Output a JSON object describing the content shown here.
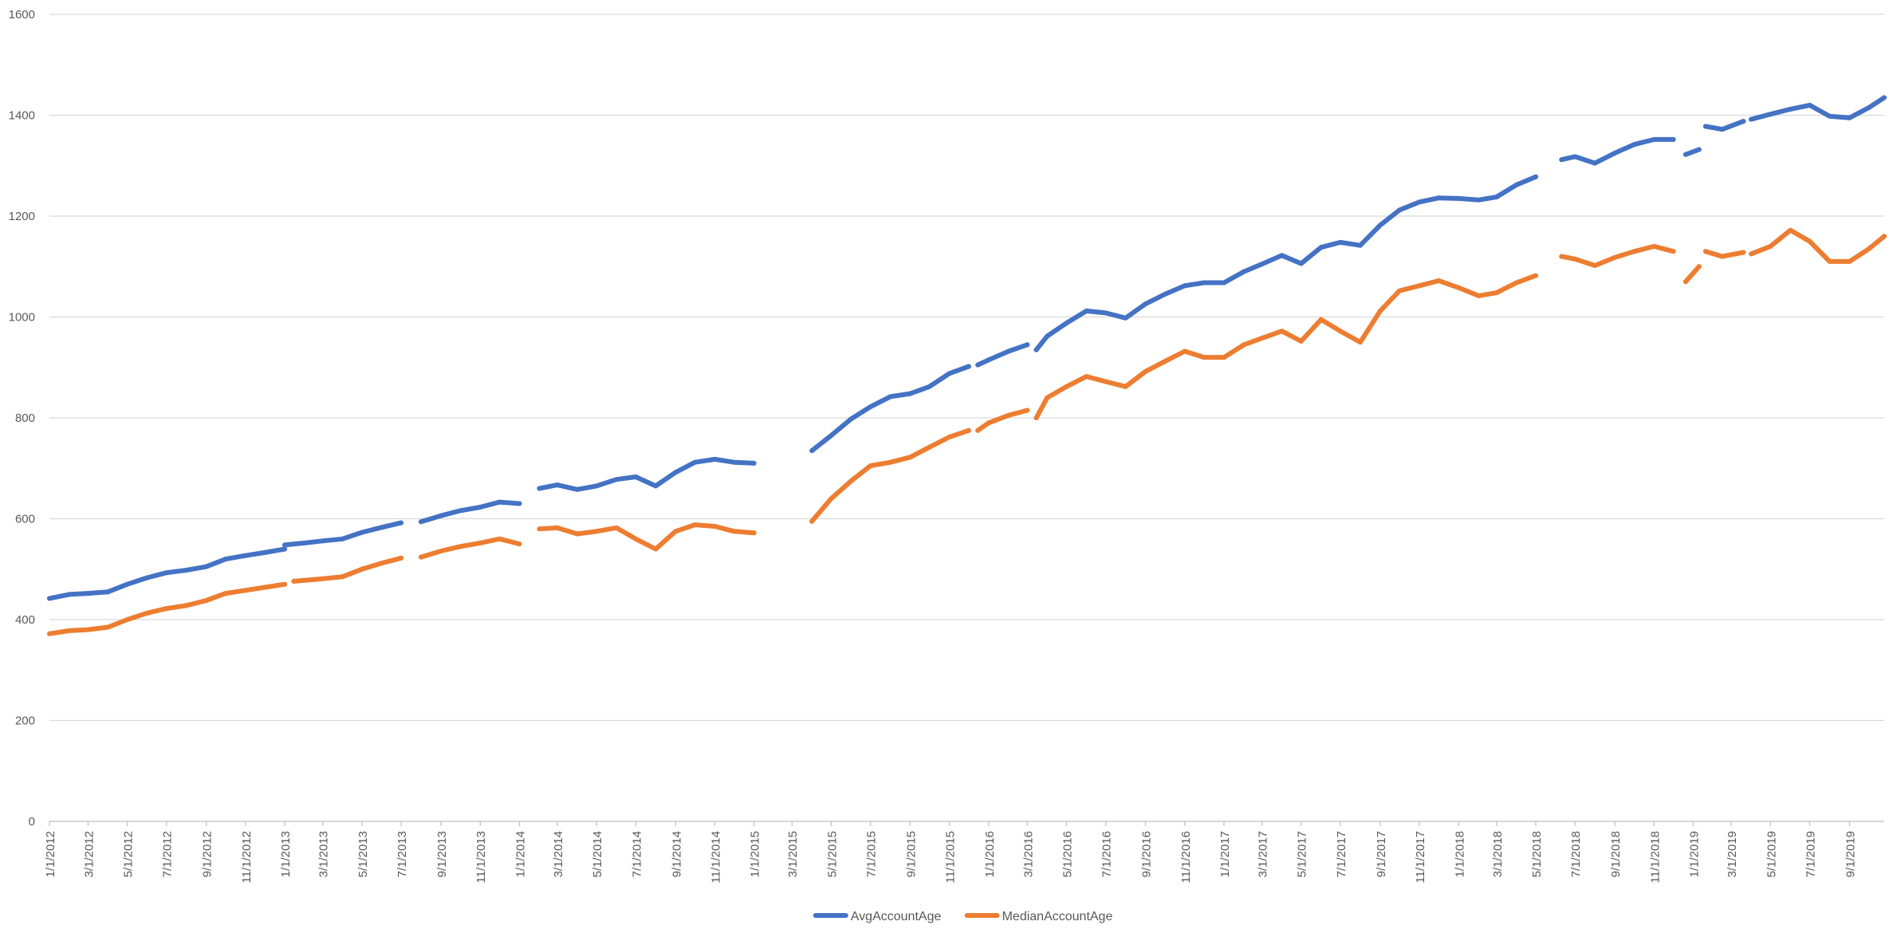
{
  "chart_data": {
    "type": "line",
    "title": "",
    "xlabel": "",
    "ylabel": "",
    "ylim": [
      0,
      1600
    ],
    "y_ticks": [
      0,
      200,
      400,
      600,
      800,
      1000,
      1200,
      1400,
      1600
    ],
    "x_range": [
      "2012-01-01",
      "2019-10-25"
    ],
    "x_tick_labels": [
      "1/1/2012",
      "3/1/2012",
      "5/1/2012",
      "7/1/2012",
      "9/1/2012",
      "11/1/2012",
      "1/1/2013",
      "3/1/2013",
      "5/1/2013",
      "7/1/2013",
      "9/1/2013",
      "11/1/2013",
      "1/1/2014",
      "3/1/2014",
      "5/1/2014",
      "7/1/2014",
      "9/1/2014",
      "11/1/2014",
      "1/1/2015",
      "3/1/2015",
      "5/1/2015",
      "7/1/2015",
      "9/1/2015",
      "11/1/2015",
      "1/1/2016",
      "3/1/2016",
      "5/1/2016",
      "7/1/2016",
      "9/1/2016",
      "11/1/2016",
      "1/1/2017",
      "3/1/2017",
      "5/1/2017",
      "7/1/2017",
      "9/1/2017",
      "11/1/2017",
      "1/1/2018",
      "3/1/2018",
      "5/1/2018",
      "7/1/2018",
      "9/1/2018",
      "11/1/2018",
      "1/1/2019",
      "3/1/2019",
      "5/1/2019",
      "7/1/2019",
      "9/1/2019"
    ],
    "grid": true,
    "legend_position": "bottom",
    "series": [
      {
        "name": "AvgAccountAge",
        "color": "#4472C4",
        "segments": [
          [
            [
              "2012-01-01",
              442
            ],
            [
              "2012-02-01",
              450
            ],
            [
              "2012-03-01",
              452
            ],
            [
              "2012-04-01",
              455
            ],
            [
              "2012-05-01",
              470
            ],
            [
              "2012-06-01",
              483
            ],
            [
              "2012-07-01",
              493
            ],
            [
              "2012-08-01",
              498
            ],
            [
              "2012-09-01",
              505
            ],
            [
              "2012-10-01",
              520
            ],
            [
              "2012-11-01",
              527
            ],
            [
              "2012-12-01",
              533
            ],
            [
              "2013-01-01",
              540
            ]
          ],
          [
            [
              "2013-01-01",
              548
            ],
            [
              "2013-02-01",
              552
            ],
            [
              "2013-03-01",
              556
            ],
            [
              "2013-04-01",
              560
            ],
            [
              "2013-05-01",
              573
            ],
            [
              "2013-06-01",
              583
            ],
            [
              "2013-07-01",
              592
            ]
          ],
          [
            [
              "2013-08-01",
              594
            ],
            [
              "2013-09-01",
              606
            ],
            [
              "2013-10-01",
              616
            ],
            [
              "2013-11-01",
              623
            ],
            [
              "2013-12-01",
              633
            ],
            [
              "2014-01-01",
              630
            ]
          ],
          [
            [
              "2014-02-01",
              660
            ],
            [
              "2014-03-01",
              667
            ],
            [
              "2014-04-01",
              658
            ],
            [
              "2014-05-01",
              665
            ],
            [
              "2014-06-01",
              678
            ],
            [
              "2014-07-01",
              683
            ],
            [
              "2014-08-01",
              665
            ],
            [
              "2014-09-01",
              692
            ],
            [
              "2014-10-01",
              712
            ],
            [
              "2014-11-01",
              718
            ],
            [
              "2014-12-01",
              712
            ],
            [
              "2015-01-01",
              710
            ]
          ],
          [
            [
              "2015-04-01",
              735
            ],
            [
              "2015-05-01",
              765
            ],
            [
              "2015-06-01",
              798
            ],
            [
              "2015-07-01",
              822
            ],
            [
              "2015-08-01",
              842
            ],
            [
              "2015-09-01",
              848
            ],
            [
              "2015-10-01",
              862
            ],
            [
              "2015-11-01",
              888
            ],
            [
              "2015-12-01",
              902
            ]
          ],
          [
            [
              "2015-12-15",
              905
            ],
            [
              "2016-01-01",
              915
            ],
            [
              "2016-02-01",
              932
            ],
            [
              "2016-03-01",
              945
            ]
          ],
          [
            [
              "2016-03-15",
              935
            ],
            [
              "2016-04-01",
              962
            ],
            [
              "2016-05-01",
              988
            ],
            [
              "2016-06-01",
              1012
            ],
            [
              "2016-07-01",
              1008
            ],
            [
              "2016-08-01",
              998
            ],
            [
              "2016-09-01",
              1026
            ],
            [
              "2016-10-01",
              1045
            ],
            [
              "2016-11-01",
              1062
            ],
            [
              "2016-12-01",
              1068
            ],
            [
              "2017-01-01",
              1068
            ],
            [
              "2017-02-01",
              1090
            ],
            [
              "2017-03-01",
              1105
            ],
            [
              "2017-04-01",
              1122
            ],
            [
              "2017-05-01",
              1106
            ],
            [
              "2017-06-01",
              1138
            ],
            [
              "2017-07-01",
              1148
            ],
            [
              "2017-08-01",
              1142
            ],
            [
              "2017-09-01",
              1182
            ],
            [
              "2017-10-01",
              1212
            ],
            [
              "2017-11-01",
              1228
            ],
            [
              "2017-12-01",
              1236
            ],
            [
              "2018-01-01",
              1235
            ],
            [
              "2018-02-01",
              1232
            ],
            [
              "2018-03-01",
              1238
            ],
            [
              "2018-04-01",
              1262
            ],
            [
              "2018-05-01",
              1278
            ]
          ],
          [
            [
              "2018-06-10",
              1312
            ],
            [
              "2018-07-01",
              1318
            ],
            [
              "2018-08-01",
              1305
            ],
            [
              "2018-09-01",
              1325
            ],
            [
              "2018-10-01",
              1342
            ],
            [
              "2018-11-01",
              1352
            ],
            [
              "2018-12-01",
              1352
            ]
          ],
          [
            [
              "2018-12-20",
              1322
            ],
            [
              "2019-01-10",
              1332
            ]
          ],
          [
            [
              "2019-01-20",
              1378
            ],
            [
              "2019-02-15",
              1372
            ],
            [
              "2019-03-20",
              1388
            ]
          ],
          [
            [
              "2019-04-01",
              1392
            ],
            [
              "2019-05-01",
              1402
            ],
            [
              "2019-06-01",
              1412
            ],
            [
              "2019-07-01",
              1420
            ],
            [
              "2019-08-01",
              1398
            ],
            [
              "2019-09-01",
              1395
            ],
            [
              "2019-10-01",
              1415
            ],
            [
              "2019-10-25",
              1435
            ]
          ]
        ]
      },
      {
        "name": "MedianAccountAge",
        "color": "#ED7D31",
        "segments": [
          [
            [
              "2012-01-01",
              372
            ],
            [
              "2012-02-01",
              378
            ],
            [
              "2012-03-01",
              380
            ],
            [
              "2012-04-01",
              385
            ],
            [
              "2012-05-01",
              400
            ],
            [
              "2012-06-01",
              413
            ],
            [
              "2012-07-01",
              422
            ],
            [
              "2012-08-01",
              428
            ],
            [
              "2012-09-01",
              438
            ],
            [
              "2012-10-01",
              452
            ],
            [
              "2012-11-01",
              458
            ],
            [
              "2012-12-01",
              464
            ],
            [
              "2013-01-01",
              470
            ]
          ],
          [
            [
              "2013-01-15",
              476
            ],
            [
              "2013-02-01",
              478
            ],
            [
              "2013-03-01",
              481
            ],
            [
              "2013-04-01",
              485
            ],
            [
              "2013-05-01",
              500
            ],
            [
              "2013-06-01",
              512
            ],
            [
              "2013-07-01",
              522
            ]
          ],
          [
            [
              "2013-08-01",
              524
            ],
            [
              "2013-09-01",
              536
            ],
            [
              "2013-10-01",
              545
            ],
            [
              "2013-11-01",
              552
            ],
            [
              "2013-12-01",
              560
            ],
            [
              "2014-01-01",
              550
            ]
          ],
          [
            [
              "2014-02-01",
              580
            ],
            [
              "2014-03-01",
              582
            ],
            [
              "2014-04-01",
              570
            ],
            [
              "2014-05-01",
              575
            ],
            [
              "2014-06-01",
              582
            ],
            [
              "2014-07-01",
              560
            ],
            [
              "2014-08-01",
              540
            ],
            [
              "2014-09-01",
              575
            ],
            [
              "2014-10-01",
              588
            ],
            [
              "2014-11-01",
              585
            ],
            [
              "2014-12-01",
              575
            ],
            [
              "2015-01-01",
              572
            ]
          ],
          [
            [
              "2015-04-01",
              595
            ],
            [
              "2015-05-01",
              640
            ],
            [
              "2015-06-01",
              675
            ],
            [
              "2015-07-01",
              705
            ],
            [
              "2015-08-01",
              712
            ],
            [
              "2015-09-01",
              722
            ],
            [
              "2015-10-01",
              742
            ],
            [
              "2015-11-01",
              762
            ],
            [
              "2015-12-01",
              775
            ]
          ],
          [
            [
              "2015-12-15",
              775
            ],
            [
              "2016-01-01",
              790
            ],
            [
              "2016-02-01",
              805
            ],
            [
              "2016-03-01",
              815
            ]
          ],
          [
            [
              "2016-03-15",
              800
            ],
            [
              "2016-04-01",
              840
            ],
            [
              "2016-05-01",
              862
            ],
            [
              "2016-06-01",
              882
            ],
            [
              "2016-07-01",
              872
            ],
            [
              "2016-08-01",
              862
            ],
            [
              "2016-09-01",
              892
            ],
            [
              "2016-10-01",
              912
            ],
            [
              "2016-11-01",
              932
            ],
            [
              "2016-12-01",
              920
            ],
            [
              "2017-01-01",
              920
            ],
            [
              "2017-02-01",
              945
            ],
            [
              "2017-03-01",
              958
            ],
            [
              "2017-04-01",
              972
            ],
            [
              "2017-05-01",
              952
            ],
            [
              "2017-06-01",
              995
            ],
            [
              "2017-07-01",
              972
            ],
            [
              "2017-08-01",
              950
            ],
            [
              "2017-09-01",
              1012
            ],
            [
              "2017-10-01",
              1052
            ],
            [
              "2017-11-01",
              1062
            ],
            [
              "2017-12-01",
              1072
            ],
            [
              "2018-01-01",
              1058
            ],
            [
              "2018-02-01",
              1042
            ],
            [
              "2018-03-01",
              1048
            ],
            [
              "2018-04-01",
              1068
            ],
            [
              "2018-05-01",
              1082
            ]
          ],
          [
            [
              "2018-06-10",
              1120
            ],
            [
              "2018-07-01",
              1115
            ],
            [
              "2018-08-01",
              1102
            ],
            [
              "2018-09-01",
              1118
            ],
            [
              "2018-10-01",
              1130
            ],
            [
              "2018-11-01",
              1140
            ],
            [
              "2018-12-01",
              1130
            ]
          ],
          [
            [
              "2018-12-20",
              1070
            ],
            [
              "2019-01-10",
              1100
            ]
          ],
          [
            [
              "2019-01-20",
              1130
            ],
            [
              "2019-02-15",
              1120
            ],
            [
              "2019-03-20",
              1128
            ]
          ],
          [
            [
              "2019-04-01",
              1125
            ],
            [
              "2019-05-01",
              1140
            ],
            [
              "2019-06-01",
              1172
            ],
            [
              "2019-07-01",
              1150
            ],
            [
              "2019-08-01",
              1110
            ],
            [
              "2019-09-01",
              1110
            ],
            [
              "2019-10-01",
              1135
            ],
            [
              "2019-10-25",
              1160
            ]
          ]
        ]
      }
    ]
  }
}
